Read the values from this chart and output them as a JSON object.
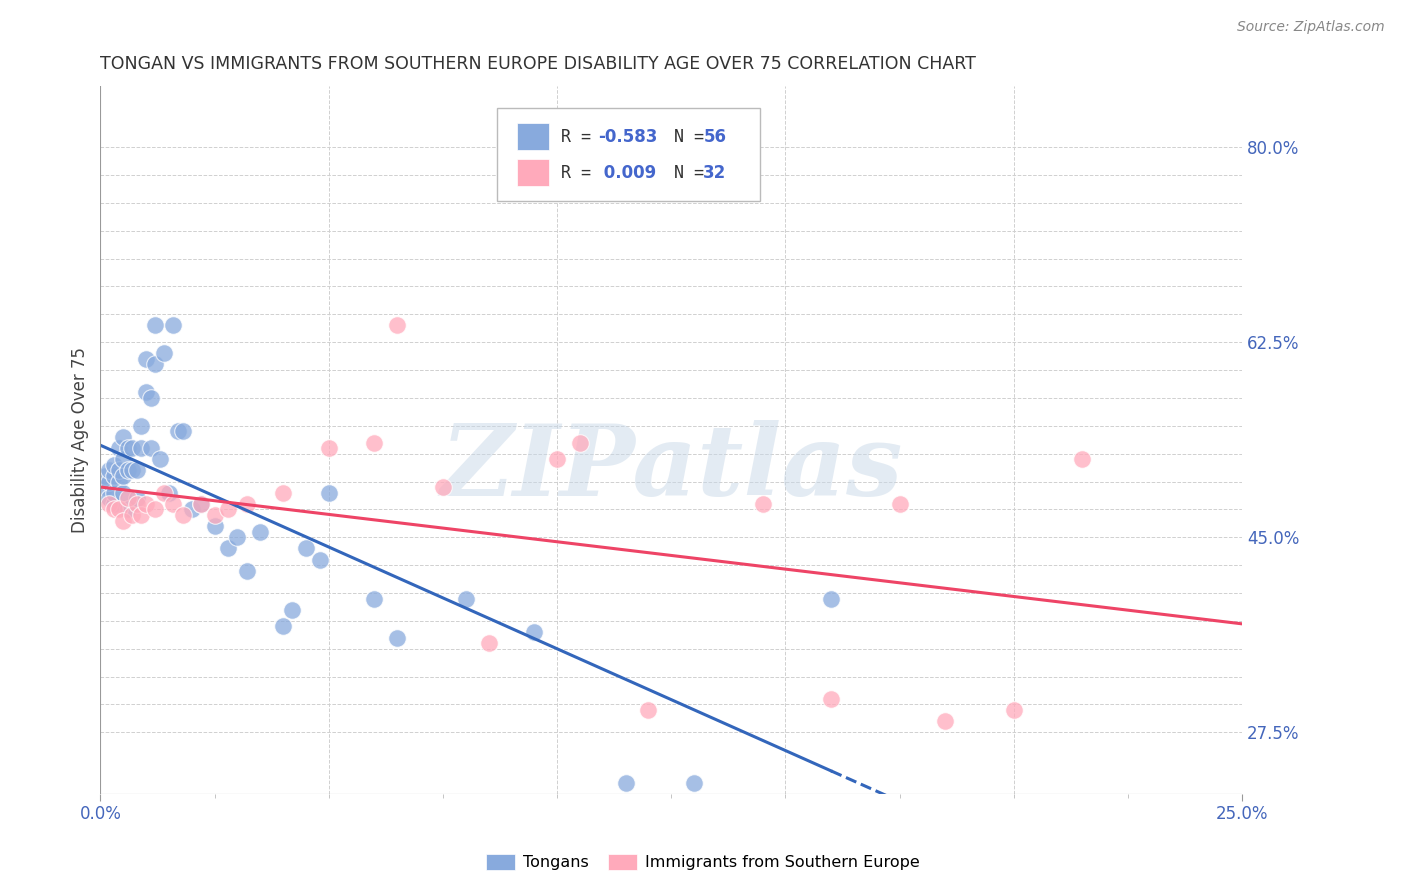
{
  "title": "TONGAN VS IMMIGRANTS FROM SOUTHERN EUROPE DISABILITY AGE OVER 75 CORRELATION CHART",
  "source": "Source: ZipAtlas.com",
  "ylabel": "Disability Age Over 75",
  "xlim": [
    0.0,
    0.25
  ],
  "ylim": [
    0.22,
    0.855
  ],
  "grid_color": "#d0d0d0",
  "background_color": "#ffffff",
  "blue_color": "#88aadd",
  "blue_line_color": "#3366bb",
  "pink_color": "#ffaabb",
  "pink_line_color": "#ee4466",
  "blue_R": -0.583,
  "blue_N": 56,
  "pink_R": 0.009,
  "pink_N": 32,
  "tongans_x": [
    0.001,
    0.001,
    0.002,
    0.002,
    0.002,
    0.003,
    0.003,
    0.003,
    0.003,
    0.004,
    0.004,
    0.004,
    0.005,
    0.005,
    0.005,
    0.005,
    0.006,
    0.006,
    0.006,
    0.007,
    0.007,
    0.008,
    0.008,
    0.009,
    0.009,
    0.01,
    0.01,
    0.011,
    0.011,
    0.012,
    0.012,
    0.013,
    0.014,
    0.015,
    0.016,
    0.017,
    0.018,
    0.02,
    0.022,
    0.025,
    0.028,
    0.03,
    0.032,
    0.035,
    0.04,
    0.042,
    0.045,
    0.048,
    0.05,
    0.06,
    0.065,
    0.08,
    0.095,
    0.115,
    0.13,
    0.16
  ],
  "tongans_y": [
    0.495,
    0.505,
    0.485,
    0.5,
    0.51,
    0.48,
    0.49,
    0.505,
    0.515,
    0.5,
    0.51,
    0.53,
    0.49,
    0.505,
    0.52,
    0.54,
    0.475,
    0.51,
    0.53,
    0.51,
    0.53,
    0.485,
    0.51,
    0.53,
    0.55,
    0.58,
    0.61,
    0.53,
    0.575,
    0.605,
    0.64,
    0.52,
    0.615,
    0.49,
    0.64,
    0.545,
    0.545,
    0.475,
    0.48,
    0.46,
    0.44,
    0.45,
    0.42,
    0.455,
    0.37,
    0.385,
    0.44,
    0.43,
    0.49,
    0.395,
    0.36,
    0.395,
    0.365,
    0.23,
    0.23,
    0.395
  ],
  "southern_europe_x": [
    0.002,
    0.003,
    0.004,
    0.005,
    0.006,
    0.007,
    0.008,
    0.009,
    0.01,
    0.012,
    0.014,
    0.016,
    0.018,
    0.022,
    0.025,
    0.028,
    0.032,
    0.04,
    0.05,
    0.06,
    0.065,
    0.075,
    0.085,
    0.1,
    0.105,
    0.12,
    0.145,
    0.16,
    0.175,
    0.185,
    0.2,
    0.215
  ],
  "southern_europe_y": [
    0.48,
    0.475,
    0.475,
    0.465,
    0.485,
    0.47,
    0.48,
    0.47,
    0.48,
    0.475,
    0.49,
    0.48,
    0.47,
    0.48,
    0.47,
    0.475,
    0.48,
    0.49,
    0.53,
    0.535,
    0.64,
    0.495,
    0.355,
    0.52,
    0.535,
    0.295,
    0.48,
    0.305,
    0.48,
    0.285,
    0.295,
    0.52
  ],
  "watermark": "ZIPatlas",
  "watermark_color": "#c8d8e8",
  "right_yticks": [
    0.275,
    0.45,
    0.625,
    0.8
  ],
  "right_yticklabels": [
    "27.5%",
    "45.0%",
    "62.5%",
    "80.0%"
  ]
}
